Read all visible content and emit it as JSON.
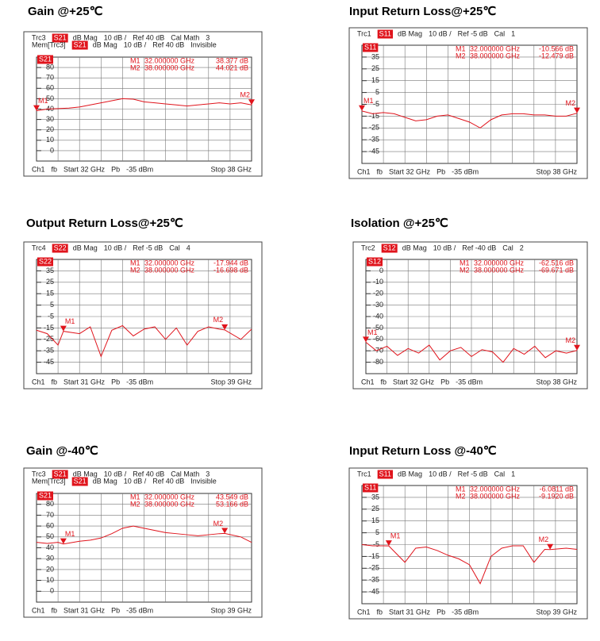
{
  "chart_data": [
    {
      "type": "line",
      "title": "Gain @+25℃",
      "header": [
        [
          "Trc3",
          "S21",
          "dB Mag",
          "10 dB /",
          "Ref 40 dB",
          "Cal Math",
          "3"
        ],
        [
          "Mem[Trc3]",
          "S21",
          "dB Mag",
          "10 dB /",
          "Ref 40 dB",
          "Invisible"
        ]
      ],
      "footer": [
        "Ch1",
        "fb",
        "Start 32 GHz",
        "Pb",
        "-35 dBm",
        "Stop 38 GHz"
      ],
      "xlim": [
        32,
        38
      ],
      "ylim": [
        -10,
        90
      ],
      "yticks": [
        80,
        70,
        60,
        50,
        40,
        30,
        20,
        10,
        0
      ],
      "markers": [
        {
          "name": "M1",
          "x": 32,
          "x_label": "32.000000 GHz",
          "value": 38.377,
          "value_label": "38.377 dB"
        },
        {
          "name": "M2",
          "x": 38,
          "x_label": "38.000000 GHz",
          "value": 44.021,
          "value_label": "44.021 dB"
        }
      ],
      "x": [
        32,
        32.3,
        32.6,
        32.9,
        33.2,
        33.5,
        33.8,
        34.1,
        34.4,
        34.7,
        35,
        35.3,
        35.6,
        35.9,
        36.2,
        36.5,
        36.8,
        37.1,
        37.4,
        37.7,
        38
      ],
      "series": [
        {
          "name": "S21",
          "color": "#e0141c",
          "values": [
            38.4,
            40,
            40.5,
            41,
            42,
            44,
            46,
            48,
            50,
            49.5,
            47,
            46,
            45,
            44,
            43,
            44,
            45,
            46,
            45,
            46,
            44
          ]
        }
      ]
    },
    {
      "type": "line",
      "title": "Input Return Loss@+25℃",
      "header": [
        [
          "Trc1",
          "S11",
          "dB Mag",
          "10 dB /",
          "Ref -5 dB",
          "Cal",
          "1"
        ]
      ],
      "footer": [
        "Ch1",
        "fb",
        "Start 32 GHz",
        "Pb",
        "-35 dBm",
        "Stop 38 GHz"
      ],
      "xlim": [
        32,
        38
      ],
      "ylim": [
        -55,
        45
      ],
      "yticks": [
        35,
        25,
        15,
        5,
        -5,
        -15,
        -25,
        -35,
        -45
      ],
      "markers": [
        {
          "name": "M1",
          "x": 32,
          "x_label": "32.000000 GHz",
          "value": -10.566,
          "value_label": "-10.566 dB"
        },
        {
          "name": "M2",
          "x": 38,
          "x_label": "38.000000 GHz",
          "value": -12.479,
          "value_label": "-12.479 dB"
        }
      ],
      "x": [
        32,
        32.3,
        32.6,
        32.9,
        33.2,
        33.5,
        33.8,
        34.1,
        34.4,
        34.7,
        35,
        35.3,
        35.6,
        35.9,
        36.2,
        36.5,
        36.8,
        37.1,
        37.4,
        37.7,
        38
      ],
      "series": [
        {
          "name": "S11",
          "color": "#e0141c",
          "values": [
            -10.6,
            -13,
            -12,
            -13,
            -16,
            -19,
            -18,
            -15,
            -14,
            -17,
            -20,
            -25,
            -18,
            -14,
            -13,
            -13,
            -14,
            -14,
            -15,
            -15,
            -12.5
          ]
        }
      ]
    },
    {
      "type": "line",
      "title": "Output Return Loss@+25℃",
      "header": [
        [
          "Trc4",
          "S22",
          "dB Mag",
          "10 dB /",
          "Ref -5 dB",
          "Cal",
          "4"
        ]
      ],
      "footer": [
        "Ch1",
        "fb",
        "Start 31 GHz",
        "Pb",
        "-35 dBm",
        "Stop 39 GHz"
      ],
      "xlim": [
        31,
        39
      ],
      "ylim": [
        -55,
        45
      ],
      "yticks": [
        35,
        25,
        15,
        5,
        -5,
        -15,
        -25,
        -35,
        -45
      ],
      "markers": [
        {
          "name": "M1",
          "x": 32,
          "x_label": "32.000000 GHz",
          "value": -17.944,
          "value_label": "-17.944 dB"
        },
        {
          "name": "M2",
          "x": 38,
          "x_label": "38.000000 GHz",
          "value": -16.698,
          "value_label": "-16.698 dB"
        }
      ],
      "x": [
        31,
        31.4,
        31.8,
        32,
        32.6,
        33,
        33.4,
        33.8,
        34.2,
        34.6,
        35,
        35.4,
        35.8,
        36.2,
        36.6,
        37,
        37.4,
        37.8,
        38,
        38.6,
        39
      ],
      "series": [
        {
          "name": "S22",
          "color": "#e0141c",
          "values": [
            -17,
            -20,
            -30,
            -17.9,
            -20,
            -14,
            -40,
            -17,
            -13,
            -22,
            -16,
            -14,
            -25,
            -15,
            -30,
            -18,
            -14,
            -16,
            -16.7,
            -25,
            -16
          ]
        }
      ]
    },
    {
      "type": "line",
      "title": "Isolation @+25℃",
      "header": [
        [
          "Trc2",
          "S12",
          "dB Mag",
          "10 dB /",
          "Ref -40 dB",
          "Cal",
          "2"
        ]
      ],
      "footer": [
        "Ch1",
        "fb",
        "Start 32 GHz",
        "Pb",
        "-35 dBm",
        "Stop 38 GHz"
      ],
      "xlim": [
        32,
        38
      ],
      "ylim": [
        -90,
        10
      ],
      "yticks": [
        0,
        -10,
        -20,
        -30,
        -40,
        -50,
        -60,
        -70,
        -80
      ],
      "markers": [
        {
          "name": "M1",
          "x": 32,
          "x_label": "32.000000 GHz",
          "value": -62.516,
          "value_label": "-62.516 dB"
        },
        {
          "name": "M2",
          "x": 38,
          "x_label": "38.000000 GHz",
          "value": -69.671,
          "value_label": "-69.671 dB"
        }
      ],
      "x": [
        32,
        32.3,
        32.6,
        32.9,
        33.2,
        33.5,
        33.8,
        34.1,
        34.4,
        34.7,
        35,
        35.3,
        35.6,
        35.9,
        36.2,
        36.5,
        36.8,
        37.1,
        37.4,
        37.7,
        38
      ],
      "series": [
        {
          "name": "S12",
          "color": "#e0141c",
          "values": [
            -62.5,
            -70,
            -66,
            -74,
            -68,
            -72,
            -65,
            -78,
            -70,
            -67,
            -75,
            -69,
            -71,
            -80,
            -68,
            -73,
            -66,
            -76,
            -70,
            -72,
            -69.7
          ]
        }
      ]
    },
    {
      "type": "line",
      "title": "Gain @-40℃",
      "header": [
        [
          "Trc3",
          "S21",
          "dB Mag",
          "10 dB /",
          "Ref 40 dB",
          "Cal Math",
          "3"
        ],
        [
          "Mem[Trc3]",
          "S21",
          "dB Mag",
          "10 dB /",
          "Ref 40 dB",
          "Invisible"
        ]
      ],
      "footer": [
        "Ch1",
        "fb",
        "Start 31 GHz",
        "Pb",
        "-35 dBm",
        "Stop 39 GHz"
      ],
      "xlim": [
        31,
        39
      ],
      "ylim": [
        -10,
        90
      ],
      "yticks": [
        80,
        70,
        60,
        50,
        40,
        30,
        20,
        10,
        0
      ],
      "markers": [
        {
          "name": "M1",
          "x": 32,
          "x_label": "32.000000 GHz",
          "value": 43.549,
          "value_label": "43.549 dB"
        },
        {
          "name": "M2",
          "x": 38,
          "x_label": "38.000000 GHz",
          "value": 53.166,
          "value_label": "53.166 dB"
        }
      ],
      "x": [
        31,
        31.4,
        31.8,
        32,
        32.6,
        33,
        33.4,
        33.8,
        34.2,
        34.6,
        35,
        35.4,
        35.8,
        36.2,
        36.6,
        37,
        37.4,
        37.8,
        38,
        38.6,
        39
      ],
      "series": [
        {
          "name": "S21",
          "color": "#e0141c",
          "values": [
            45,
            44,
            45,
            43.5,
            46,
            47,
            49,
            53,
            58,
            60,
            58,
            56,
            54,
            53,
            52,
            51,
            52,
            53,
            53.2,
            50,
            45
          ]
        }
      ]
    },
    {
      "type": "line",
      "title": "Input Return Loss @-40℃",
      "header": [
        [
          "Trc1",
          "S11",
          "dB Mag",
          "10 dB /",
          "Ref -5 dB",
          "Cal",
          "1"
        ]
      ],
      "footer": [
        "Ch1",
        "fb",
        "Start 31 GHz",
        "Pb",
        "-35 dBm",
        "Stop 39 GHz"
      ],
      "xlim": [
        31,
        39
      ],
      "ylim": [
        -55,
        45
      ],
      "yticks": [
        35,
        25,
        15,
        5,
        -5,
        -15,
        -25,
        -35,
        -45
      ],
      "markers": [
        {
          "name": "M1",
          "x": 32,
          "x_label": "32.000000 GHz",
          "value": -6.0811,
          "value_label": "-6.0811 dB"
        },
        {
          "name": "M2",
          "x": 38,
          "x_label": "38.000000 GHz",
          "value": -9.192,
          "value_label": "-9.1920 dB"
        }
      ],
      "x": [
        31,
        31.4,
        31.8,
        32,
        32.6,
        33,
        33.4,
        33.8,
        34.2,
        34.6,
        35,
        35.4,
        35.8,
        36.2,
        36.6,
        37,
        37.4,
        37.8,
        38,
        38.6,
        39
      ],
      "series": [
        {
          "name": "S11",
          "color": "#e0141c",
          "values": [
            -5,
            -6,
            -6,
            -6.1,
            -20,
            -8,
            -7,
            -10,
            -14,
            -17,
            -22,
            -38,
            -15,
            -8,
            -6,
            -6,
            -20,
            -9,
            -9.2,
            -8,
            -9
          ]
        }
      ]
    }
  ]
}
